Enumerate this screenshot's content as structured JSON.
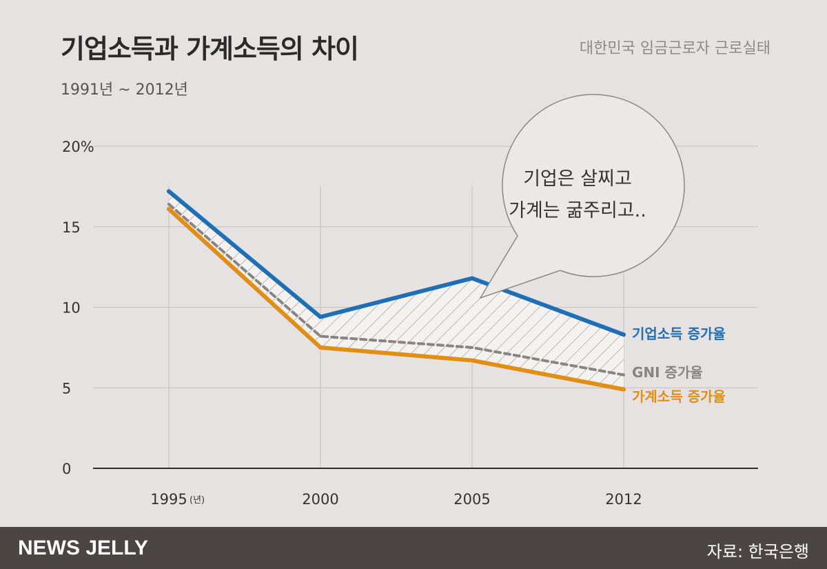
{
  "header": {
    "title": "기업소득과 가계소득의 차이",
    "period": "1991년  ~ 2012년",
    "series_name": "대한민국 임금근로자 근로실태"
  },
  "chart_data": {
    "type": "line",
    "x": [
      1995,
      2000,
      2005,
      2012
    ],
    "x_tick_labels": [
      "1995",
      "2000",
      "2005",
      "2012"
    ],
    "x_unit_label": "(년)",
    "y_tick_labels": [
      "20%",
      "15",
      "10",
      "5",
      "0"
    ],
    "ylim": [
      0,
      20
    ],
    "series": [
      {
        "name": "기업소득 증가율",
        "values": [
          17.2,
          9.4,
          11.8,
          8.3
        ],
        "color": "#1e6fb5",
        "style": "solid"
      },
      {
        "name": "GNI 증가율",
        "values": [
          16.4,
          8.2,
          7.5,
          5.8
        ],
        "color": "#888481",
        "style": "dashed"
      },
      {
        "name": "가계소득 증가율",
        "values": [
          16.1,
          7.5,
          6.7,
          4.9
        ],
        "color": "#e08f14",
        "style": "solid"
      }
    ],
    "annotation": {
      "line1": "기업은 살찌고",
      "line2": "가계는 굶주리고.."
    },
    "grid": true
  },
  "footer": {
    "brand": "NEWS JELLY",
    "source": "자료: 한국은행"
  },
  "colors": {
    "background": "#e5e2e1",
    "grid": "#c4c0be",
    "axis": "#2b2b2b",
    "bubble_fill": "#ebe9e8",
    "bubble_stroke": "#8a8684",
    "footer_bg": "#4b4643"
  }
}
